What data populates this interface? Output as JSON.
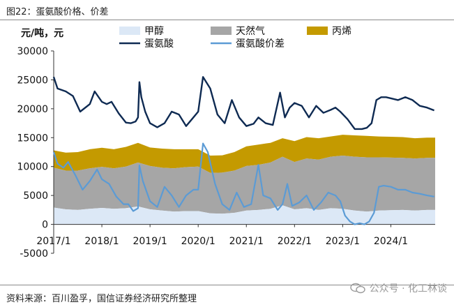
{
  "figure": {
    "title": "图22：蛋氨酸价格、价差",
    "source": "资料来源：百川盈孚，国信证券经济研究所整理",
    "watermark": "公众号 · 化工林谈"
  },
  "chart_data": {
    "type": "line+stacked-area",
    "ylabel": "元/吨，元",
    "ylim": [
      -5000,
      30000
    ],
    "yticks": [
      -5000,
      0,
      5000,
      10000,
      15000,
      20000,
      25000,
      30000
    ],
    "ytick_labels": [
      "-5000",
      "0",
      "5000",
      "10000",
      "15000",
      "20000",
      "25000",
      "30000"
    ],
    "xlim": [
      2017.0,
      2024.92
    ],
    "xticks": [
      2017,
      2018,
      2019,
      2020,
      2021,
      2022,
      2023,
      2024
    ],
    "xtick_labels": [
      "2017/1",
      "2018/1",
      "2019/1",
      "2020/1",
      "2021/1",
      "2022/1",
      "2023/1",
      "2024/1"
    ],
    "legend": [
      "甲醇",
      "天然气",
      "丙烯",
      "蛋氨酸",
      "蛋氨酸价差"
    ],
    "colors": {
      "methanol": "#dce8f6",
      "natural_gas": "#a6a6a6",
      "propylene": "#c49a00",
      "methionine": "#0e2a52",
      "spread": "#5b9bd5"
    },
    "series": [
      {
        "name": "甲醇",
        "kind": "area",
        "x": [
          2017.0,
          2017.25,
          2017.5,
          2017.75,
          2018.0,
          2018.25,
          2018.5,
          2018.75,
          2019.0,
          2019.25,
          2019.5,
          2019.75,
          2020.0,
          2020.25,
          2020.5,
          2020.75,
          2021.0,
          2021.25,
          2021.5,
          2021.75,
          2022.0,
          2022.25,
          2022.5,
          2022.75,
          2023.0,
          2023.25,
          2023.5,
          2023.75,
          2024.0,
          2024.25,
          2024.5,
          2024.75,
          2024.92
        ],
        "values": [
          2900,
          2600,
          2500,
          2700,
          2850,
          2700,
          2800,
          3100,
          2600,
          2400,
          2200,
          2300,
          2300,
          1900,
          1850,
          2000,
          2400,
          2500,
          2700,
          3300,
          2600,
          2800,
          2500,
          2800,
          2700,
          2400,
          2200,
          2400,
          2450,
          2500,
          2400,
          2500,
          2500
        ]
      },
      {
        "name": "天然气",
        "kind": "area",
        "x": [
          2017.0,
          2017.25,
          2017.5,
          2017.75,
          2018.0,
          2018.25,
          2018.5,
          2018.75,
          2019.0,
          2019.25,
          2019.5,
          2019.75,
          2020.0,
          2020.25,
          2020.5,
          2020.75,
          2021.0,
          2021.25,
          2021.5,
          2021.75,
          2022.0,
          2022.25,
          2022.5,
          2022.75,
          2023.0,
          2023.25,
          2023.5,
          2023.75,
          2024.0,
          2024.25,
          2024.5,
          2024.75,
          2024.92
        ],
        "values": [
          6900,
          6700,
          6800,
          7000,
          7100,
          7000,
          7200,
          7600,
          7500,
          7400,
          7500,
          7600,
          7700,
          7000,
          7100,
          7300,
          7700,
          7800,
          8000,
          8400,
          8200,
          8600,
          8700,
          8900,
          9200,
          9300,
          9400,
          9200,
          9100,
          9000,
          9000,
          9000,
          9000
        ]
      },
      {
        "name": "丙烯",
        "kind": "area",
        "x": [
          2017.0,
          2017.25,
          2017.5,
          2017.75,
          2018.0,
          2018.25,
          2018.5,
          2018.75,
          2019.0,
          2019.25,
          2019.5,
          2019.75,
          2020.0,
          2020.25,
          2020.5,
          2020.75,
          2021.0,
          2021.25,
          2021.5,
          2021.75,
          2022.0,
          2022.25,
          2022.5,
          2022.75,
          2023.0,
          2023.25,
          2023.5,
          2023.75,
          2024.0,
          2024.25,
          2024.5,
          2024.75,
          2024.92
        ],
        "values": [
          3000,
          3100,
          3200,
          3300,
          3300,
          3300,
          3400,
          3400,
          3200,
          3300,
          3300,
          3100,
          3000,
          3000,
          3000,
          3200,
          3400,
          3500,
          3400,
          3200,
          3600,
          3700,
          3700,
          3500,
          3600,
          3700,
          3700,
          3600,
          3600,
          3600,
          3500,
          3500,
          3500
        ]
      },
      {
        "name": "蛋氨酸",
        "kind": "line",
        "x": [
          2017.0,
          2017.08,
          2017.25,
          2017.4,
          2017.55,
          2017.75,
          2017.85,
          2018.0,
          2018.1,
          2018.2,
          2018.35,
          2018.5,
          2018.6,
          2018.7,
          2018.75,
          2018.78,
          2018.82,
          2018.9,
          2019.0,
          2019.15,
          2019.3,
          2019.45,
          2019.6,
          2019.75,
          2019.9,
          2020.0,
          2020.1,
          2020.25,
          2020.4,
          2020.55,
          2020.7,
          2020.85,
          2021.0,
          2021.15,
          2021.25,
          2021.4,
          2021.55,
          2021.7,
          2021.8,
          2021.9,
          2022.0,
          2022.15,
          2022.3,
          2022.45,
          2022.6,
          2022.75,
          2022.85,
          2022.95,
          2023.1,
          2023.25,
          2023.4,
          2023.5,
          2023.6,
          2023.7,
          2023.8,
          2023.9,
          2024.0,
          2024.15,
          2024.3,
          2024.45,
          2024.6,
          2024.75,
          2024.9
        ],
        "values": [
          25500,
          23500,
          23000,
          22200,
          19500,
          20800,
          23000,
          21200,
          20800,
          21200,
          19200,
          17600,
          17500,
          17800,
          18500,
          24600,
          22000,
          19500,
          17500,
          16800,
          17500,
          19500,
          19000,
          17000,
          18500,
          19500,
          25500,
          23500,
          19000,
          17500,
          21500,
          18500,
          17000,
          17400,
          18500,
          17500,
          17200,
          22800,
          18500,
          20200,
          21000,
          20500,
          18500,
          20500,
          19300,
          19800,
          20200,
          19500,
          18200,
          16500,
          16500,
          16700,
          17500,
          21500,
          22000,
          22000,
          21800,
          21500,
          22000,
          21500,
          20500,
          20200,
          19700
        ]
      },
      {
        "name": "蛋氨酸价差",
        "kind": "line",
        "x": [
          2017.0,
          2017.08,
          2017.2,
          2017.3,
          2017.45,
          2017.6,
          2017.75,
          2017.9,
          2018.0,
          2018.15,
          2018.3,
          2018.45,
          2018.55,
          2018.65,
          2018.75,
          2018.78,
          2018.85,
          2019.0,
          2019.15,
          2019.3,
          2019.45,
          2019.6,
          2019.75,
          2019.9,
          2020.0,
          2020.1,
          2020.2,
          2020.35,
          2020.5,
          2020.65,
          2020.8,
          2020.95,
          2021.1,
          2021.25,
          2021.35,
          2021.5,
          2021.65,
          2021.75,
          2021.85,
          2021.95,
          2022.1,
          2022.25,
          2022.4,
          2022.55,
          2022.7,
          2022.85,
          2022.95,
          2023.05,
          2023.15,
          2023.25,
          2023.35,
          2023.45,
          2023.55,
          2023.65,
          2023.75,
          2023.85,
          2024.0,
          2024.15,
          2024.3,
          2024.45,
          2024.6,
          2024.75,
          2024.9
        ],
        "values": [
          12500,
          10500,
          9800,
          10800,
          8500,
          6000,
          7500,
          9500,
          7800,
          7000,
          4800,
          3500,
          3500,
          2300,
          2800,
          10200,
          7500,
          4000,
          3000,
          6500,
          5000,
          3000,
          5000,
          6000,
          6000,
          14000,
          12500,
          7000,
          3500,
          2500,
          5500,
          3000,
          3500,
          10300,
          5000,
          4500,
          2500,
          3500,
          7000,
          3200,
          3800,
          5000,
          2500,
          3800,
          5500,
          5000,
          4000,
          1500,
          500,
          0,
          200,
          0,
          500,
          2000,
          6500,
          6700,
          6500,
          6000,
          6000,
          5500,
          5300,
          5000,
          4800
        ]
      }
    ]
  }
}
